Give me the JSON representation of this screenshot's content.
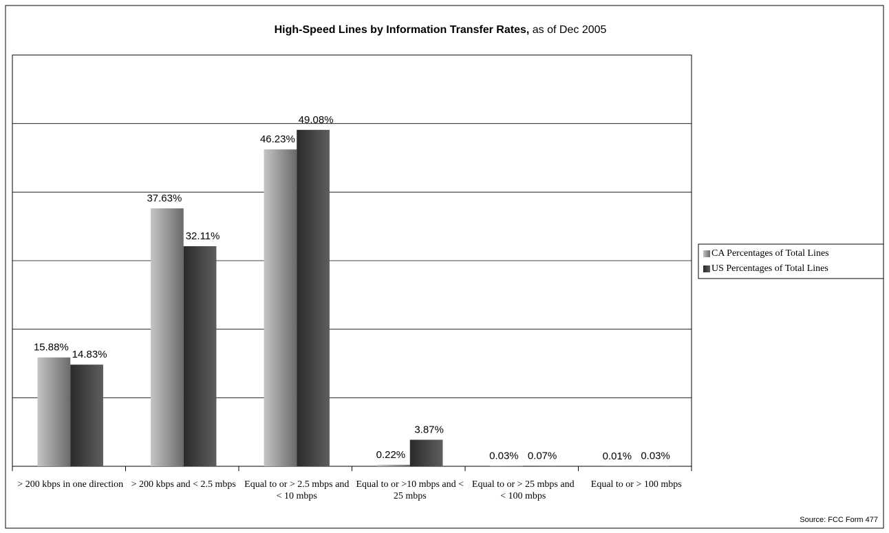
{
  "chart_data": {
    "type": "bar",
    "title": "High-Speed Lines by Information Transfer Rates,",
    "subtitle": "as of Dec 2005",
    "categories": [
      "> 200 kbps in one direction",
      "> 200 kbps and < 2.5 mbps",
      "Equal to or > 2.5 mbps and < 10 mbps",
      "Equal to or >10 mbps and < 25 mbps",
      "Equal to or > 25 mbps and < 100 mbps",
      "Equal to or > 100 mbps"
    ],
    "series": [
      {
        "name": "CA Percentages of Total Lines",
        "color": [
          "#c4c4c4",
          "#6a6a6a"
        ],
        "values": [
          15.88,
          37.63,
          46.23,
          0.22,
          0.03,
          0.01
        ],
        "value_labels": [
          "15.88%",
          "37.63%",
          "46.23%",
          "0.22%",
          "0.03%",
          "0.01%"
        ]
      },
      {
        "name": "US Percentages of Total Lines",
        "color": [
          "#2a2a2a",
          "#5e5e5e"
        ],
        "values": [
          14.83,
          32.11,
          49.08,
          3.87,
          0.07,
          0.03
        ],
        "value_labels": [
          "14.83%",
          "32.11%",
          "49.08%",
          "3.87%",
          "0.07%",
          "0.03%"
        ]
      }
    ],
    "ylim": [
      0,
      60
    ],
    "yticks": [
      0,
      10,
      20,
      30,
      40,
      50,
      60
    ],
    "show_ytick_labels": false,
    "grid": true,
    "legend": "right",
    "annotation": "Source: FCC Form 477"
  }
}
